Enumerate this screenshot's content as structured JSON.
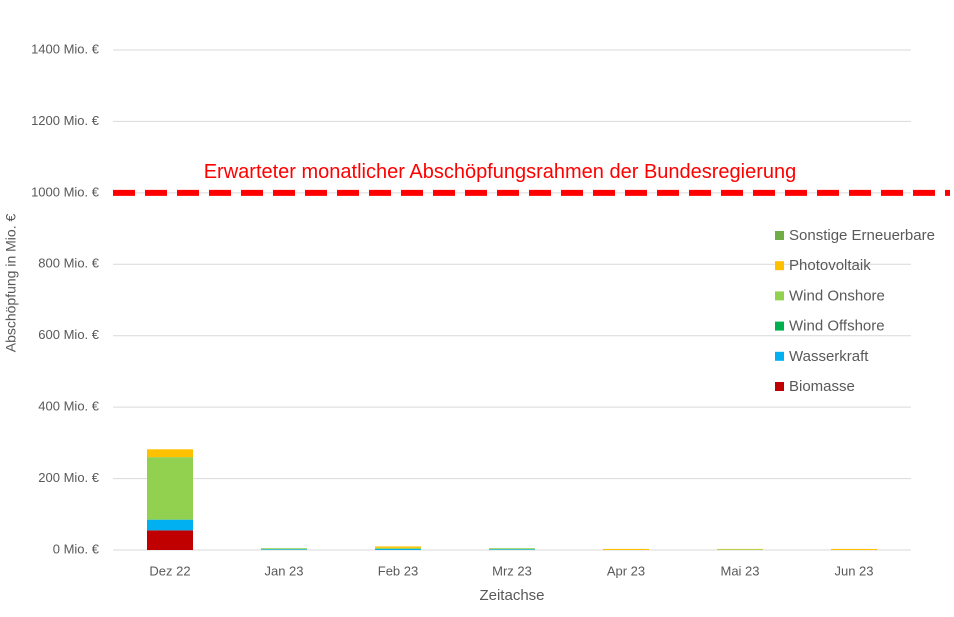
{
  "chart_data": {
    "type": "stacked_bar",
    "categories": [
      "Dez 22",
      "Jan 23",
      "Feb 23",
      "Mrz 23",
      "Apr 23",
      "Mai 23",
      "Jun 23"
    ],
    "series": [
      {
        "name": "Biomasse",
        "color": "#c00000",
        "values": [
          55,
          0,
          0,
          0,
          0,
          0,
          0
        ]
      },
      {
        "name": "Wasserkraft",
        "color": "#00b0f0",
        "values": [
          30,
          2,
          3,
          2,
          0,
          0,
          0
        ]
      },
      {
        "name": "Wind Offshore",
        "color": "#00b050",
        "values": [
          0,
          0,
          0,
          0,
          0,
          0,
          0
        ]
      },
      {
        "name": "Wind Onshore",
        "color": "#92d050",
        "values": [
          175,
          3,
          3,
          3,
          0,
          2,
          0
        ]
      },
      {
        "name": "Photovoltaik",
        "color": "#ffc000",
        "values": [
          22,
          0,
          4,
          0,
          3,
          1,
          3
        ]
      },
      {
        "name": "Sonstige Erneuerbare",
        "color": "#70ad47",
        "values": [
          0,
          0,
          0,
          0,
          0,
          0,
          0
        ]
      }
    ],
    "ylim": [
      0,
      1400
    ],
    "yticks": [
      {
        "value": 0,
        "label": "0 Mio. €"
      },
      {
        "value": 200,
        "label": "200 Mio. €"
      },
      {
        "value": 400,
        "label": "400 Mio. €"
      },
      {
        "value": 600,
        "label": "600 Mio. €"
      },
      {
        "value": 800,
        "label": "800 Mio. €"
      },
      {
        "value": 1000,
        "label": "1000 Mio. €"
      },
      {
        "value": 1200,
        "label": "1200 Mio. €"
      },
      {
        "value": 1400,
        "label": "1400 Mio. €"
      }
    ],
    "grid": true,
    "y_label": "Abschöpfung in Mio. €",
    "x_label": "Zeitachse",
    "reference_line": {
      "value": 1000,
      "label": "Erwarteter monatlicher Abschöpfungsrahmen der Bundesregierung",
      "color": "#ff0000"
    },
    "legend": "right"
  }
}
